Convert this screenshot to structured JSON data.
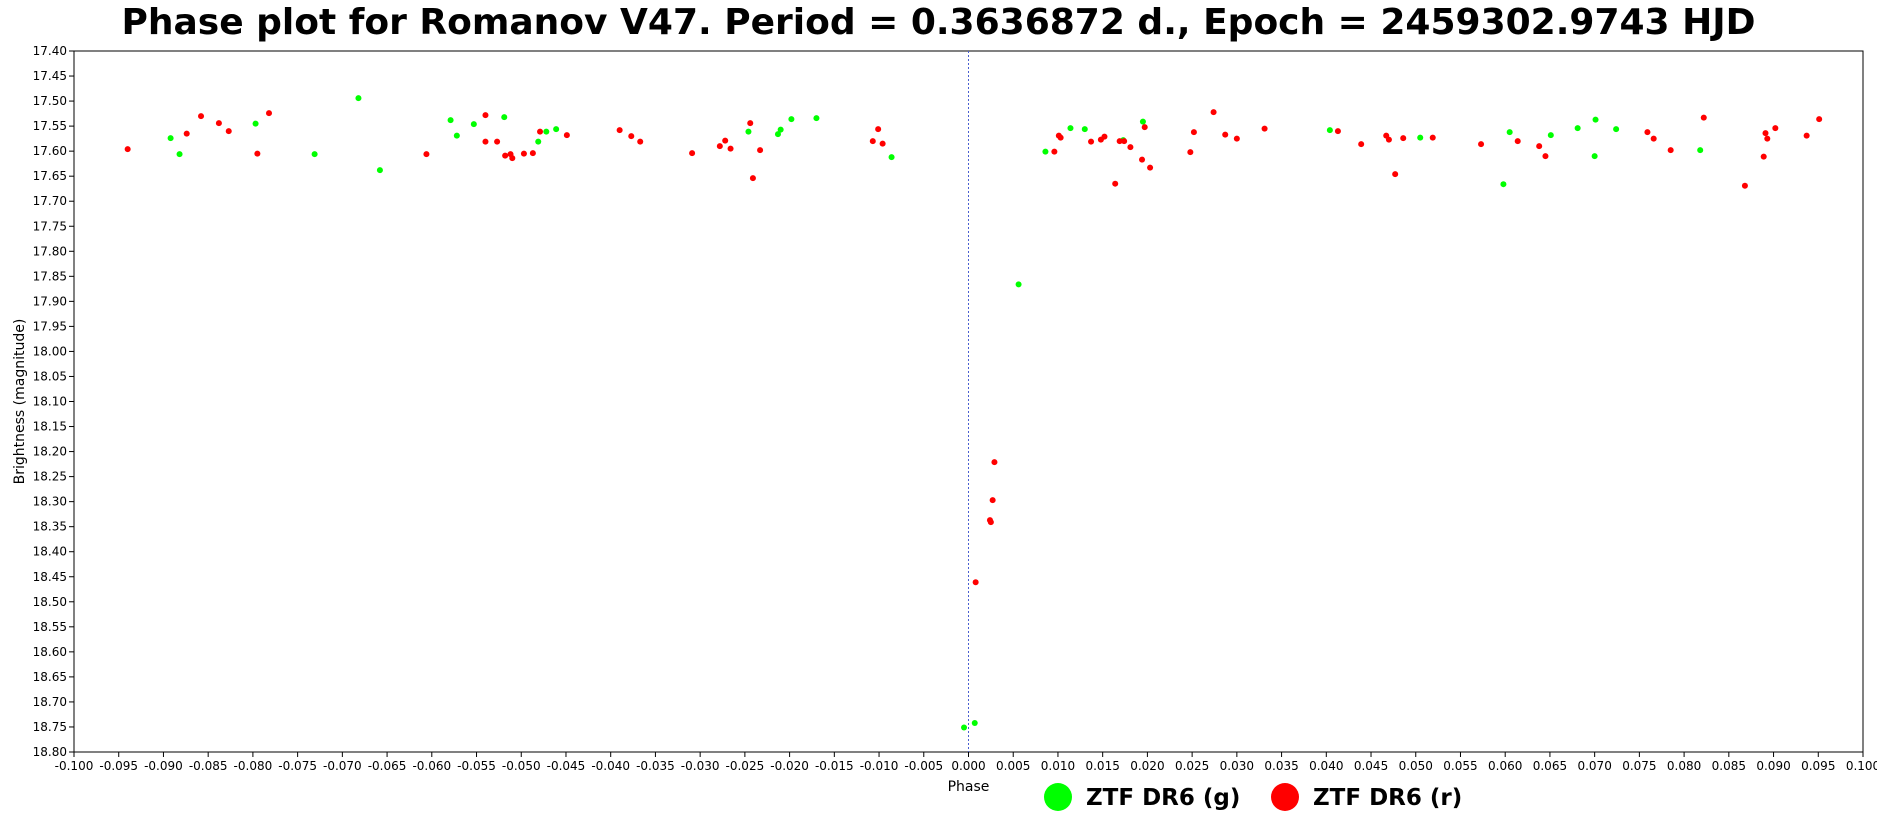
{
  "chart_data": {
    "type": "scatter",
    "title": "Phase plot for Romanov V47.  Period = 0.3636872 d., Epoch = 2459302.9743 HJD",
    "xlabel": "Phase",
    "ylabel": "Brightness (magnitude)",
    "xlim": [
      -0.1,
      0.1
    ],
    "ylim": [
      17.4,
      18.8
    ],
    "y_inverted": true,
    "x_ticks": [
      "-0.100",
      "-0.095",
      "-0.090",
      "-0.085",
      "-0.080",
      "-0.075",
      "-0.070",
      "-0.065",
      "-0.060",
      "-0.055",
      "-0.050",
      "-0.045",
      "-0.040",
      "-0.035",
      "-0.030",
      "-0.025",
      "-0.020",
      "-0.015",
      "-0.010",
      "-0.005",
      "0.000",
      "0.005",
      "0.010",
      "0.015",
      "0.020",
      "0.025",
      "0.030",
      "0.035",
      "0.040",
      "0.045",
      "0.050",
      "0.055",
      "0.060",
      "0.065",
      "0.070",
      "0.075",
      "0.080",
      "0.085",
      "0.090",
      "0.095",
      "0.100"
    ],
    "y_ticks": [
      "17.40",
      "17.45",
      "17.50",
      "17.55",
      "17.60",
      "17.65",
      "17.70",
      "17.75",
      "17.80",
      "17.85",
      "17.90",
      "17.95",
      "18.00",
      "18.05",
      "18.10",
      "18.15",
      "18.20",
      "18.25",
      "18.30",
      "18.35",
      "18.40",
      "18.45",
      "18.50",
      "18.55",
      "18.60",
      "18.65",
      "18.70",
      "18.75",
      "18.80"
    ],
    "reference_line_x": 0.0,
    "grid": false,
    "legend_position": "bottom-center",
    "series": [
      {
        "name": "ZTF DR6 (g)",
        "color": "#00ff00",
        "points": [
          [
            -0.0892,
            17.574
          ],
          [
            -0.0882,
            17.606
          ],
          [
            -0.0797,
            17.545
          ],
          [
            -0.0731,
            17.606
          ],
          [
            -0.0682,
            17.494
          ],
          [
            -0.0658,
            17.638
          ],
          [
            -0.0579,
            17.538
          ],
          [
            -0.0572,
            17.569
          ],
          [
            -0.0553,
            17.546
          ],
          [
            -0.0519,
            17.532
          ],
          [
            -0.0481,
            17.581
          ],
          [
            -0.0472,
            17.561
          ],
          [
            -0.0461,
            17.556
          ],
          [
            -0.0246,
            17.561
          ],
          [
            -0.0213,
            17.566
          ],
          [
            -0.021,
            17.557
          ],
          [
            -0.0198,
            17.536
          ],
          [
            -0.017,
            17.534
          ],
          [
            -0.0086,
            17.612
          ],
          [
            -0.0005,
            18.751
          ],
          [
            0.0007,
            18.742
          ],
          [
            0.0056,
            17.866
          ],
          [
            0.0086,
            17.601
          ],
          [
            0.0114,
            17.554
          ],
          [
            0.013,
            17.556
          ],
          [
            0.0173,
            17.578
          ],
          [
            0.0195,
            17.541
          ],
          [
            0.0404,
            17.558
          ],
          [
            0.0505,
            17.573
          ],
          [
            0.0598,
            17.666
          ],
          [
            0.0605,
            17.562
          ],
          [
            0.0651,
            17.568
          ],
          [
            0.0681,
            17.554
          ],
          [
            0.07,
            17.61
          ],
          [
            0.0701,
            17.537
          ],
          [
            0.0724,
            17.556
          ],
          [
            0.0818,
            17.598
          ]
        ]
      },
      {
        "name": "ZTF DR6 (r)",
        "color": "#ff0000",
        "points": [
          [
            -0.094,
            17.596
          ],
          [
            -0.0874,
            17.565
          ],
          [
            -0.0858,
            17.53
          ],
          [
            -0.0838,
            17.544
          ],
          [
            -0.0827,
            17.56
          ],
          [
            -0.0795,
            17.605
          ],
          [
            -0.0782,
            17.524
          ],
          [
            -0.0606,
            17.606
          ],
          [
            -0.054,
            17.528
          ],
          [
            -0.054,
            17.581
          ],
          [
            -0.0527,
            17.581
          ],
          [
            -0.0518,
            17.609
          ],
          [
            -0.0512,
            17.606
          ],
          [
            -0.051,
            17.614
          ],
          [
            -0.0497,
            17.605
          ],
          [
            -0.0487,
            17.604
          ],
          [
            -0.0479,
            17.561
          ],
          [
            -0.0449,
            17.568
          ],
          [
            -0.039,
            17.558
          ],
          [
            -0.0377,
            17.57
          ],
          [
            -0.0367,
            17.581
          ],
          [
            -0.0309,
            17.604
          ],
          [
            -0.0278,
            17.59
          ],
          [
            -0.0272,
            17.579
          ],
          [
            -0.0266,
            17.595
          ],
          [
            -0.0244,
            17.544
          ],
          [
            -0.0241,
            17.654
          ],
          [
            -0.0233,
            17.598
          ],
          [
            -0.0107,
            17.58
          ],
          [
            -0.0101,
            17.556
          ],
          [
            -0.0096,
            17.585
          ],
          [
            0.0008,
            18.461
          ],
          [
            0.0024,
            18.337
          ],
          [
            0.0025,
            18.341
          ],
          [
            0.0027,
            18.297
          ],
          [
            0.0029,
            18.221
          ],
          [
            0.0096,
            17.601
          ],
          [
            0.0101,
            17.569
          ],
          [
            0.0103,
            17.573
          ],
          [
            0.0137,
            17.581
          ],
          [
            0.0148,
            17.577
          ],
          [
            0.0152,
            17.571
          ],
          [
            0.0164,
            17.665
          ],
          [
            0.0169,
            17.58
          ],
          [
            0.0174,
            17.58
          ],
          [
            0.0181,
            17.592
          ],
          [
            0.0194,
            17.617
          ],
          [
            0.0197,
            17.552
          ],
          [
            0.0203,
            17.633
          ],
          [
            0.0248,
            17.602
          ],
          [
            0.0252,
            17.562
          ],
          [
            0.0274,
            17.522
          ],
          [
            0.0287,
            17.567
          ],
          [
            0.03,
            17.575
          ],
          [
            0.0331,
            17.555
          ],
          [
            0.0413,
            17.56
          ],
          [
            0.0439,
            17.586
          ],
          [
            0.0467,
            17.569
          ],
          [
            0.047,
            17.577
          ],
          [
            0.0477,
            17.646
          ],
          [
            0.0486,
            17.574
          ],
          [
            0.0519,
            17.573
          ],
          [
            0.0573,
            17.586
          ],
          [
            0.0614,
            17.58
          ],
          [
            0.0638,
            17.59
          ],
          [
            0.0645,
            17.61
          ],
          [
            0.0759,
            17.562
          ],
          [
            0.0766,
            17.575
          ],
          [
            0.0785,
            17.598
          ],
          [
            0.0822,
            17.533
          ],
          [
            0.0868,
            17.669
          ],
          [
            0.0889,
            17.611
          ],
          [
            0.0891,
            17.564
          ],
          [
            0.0893,
            17.575
          ],
          [
            0.0902,
            17.554
          ],
          [
            0.0937,
            17.569
          ],
          [
            0.0951,
            17.536
          ]
        ]
      }
    ]
  }
}
